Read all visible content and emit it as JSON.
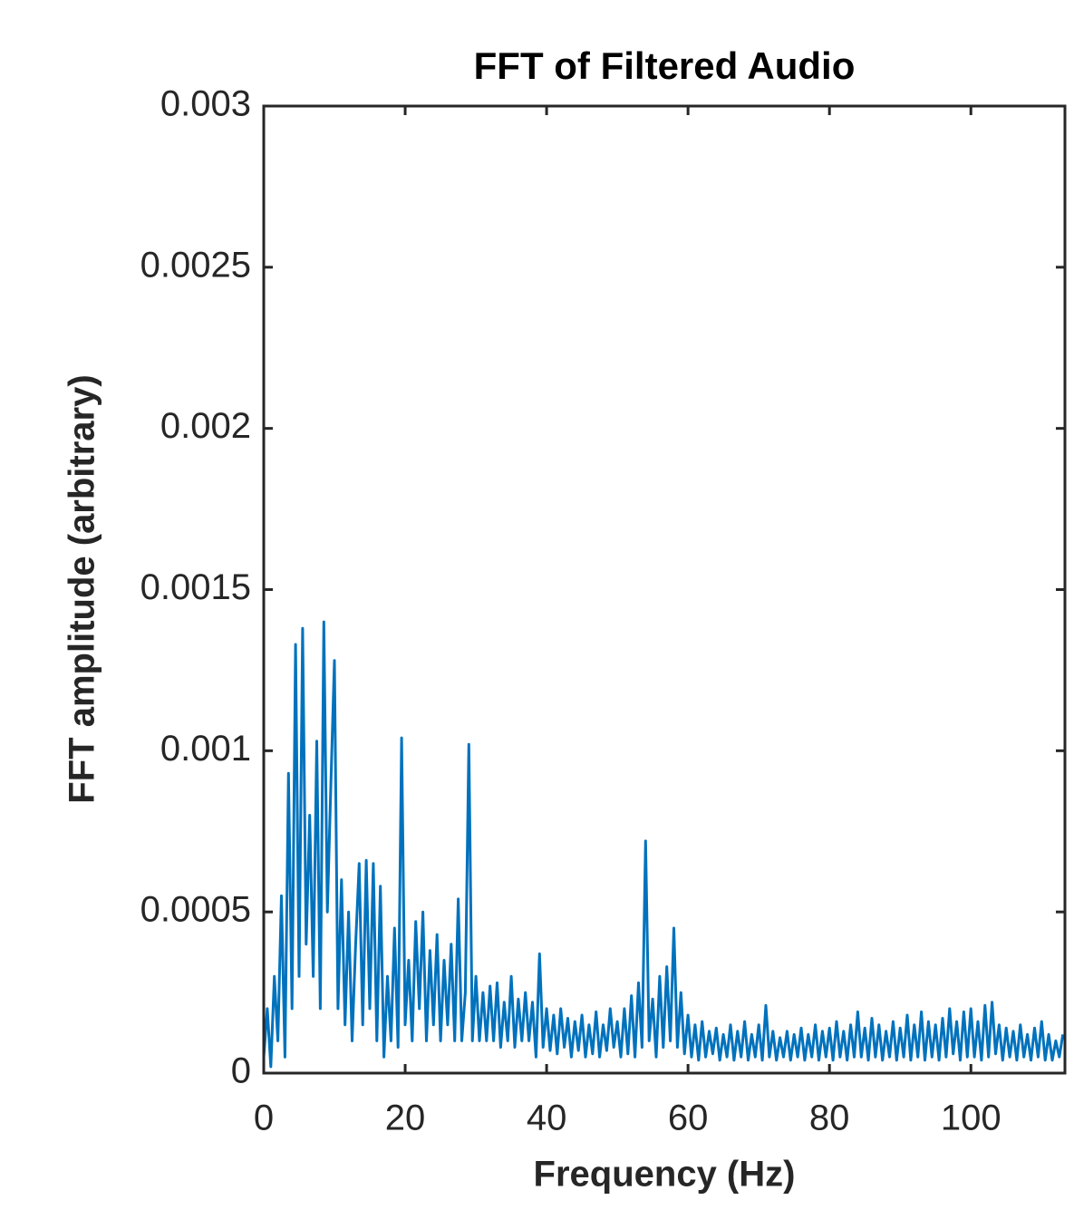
{
  "chart_data": {
    "type": "line",
    "title": "FFT of Filtered Audio",
    "x_label": "Frequency (Hz)",
    "y_label": "FFT amplitude (arbitrary)",
    "color": "#0072bd",
    "xlim": [
      0,
      113.3
    ],
    "ylim": [
      0,
      0.003
    ],
    "xticks": [
      0,
      20,
      40,
      60,
      80,
      100
    ],
    "yticks": [
      0,
      0.0005,
      0.001,
      0.0015,
      0.002,
      0.0025,
      0.003
    ],
    "grid": false,
    "x": [
      0,
      0.5,
      1,
      1.5,
      2,
      2.5,
      3,
      3.5,
      4,
      4.5,
      5,
      5.5,
      6,
      6.5,
      7,
      7.5,
      8,
      8.5,
      9,
      9.5,
      10,
      10.5,
      11,
      11.5,
      12,
      12.5,
      13,
      13.5,
      14,
      14.5,
      15,
      15.5,
      16,
      16.5,
      17,
      17.5,
      18,
      18.5,
      19,
      19.5,
      20,
      20.5,
      21,
      21.5,
      22,
      22.5,
      23,
      23.5,
      24,
      24.5,
      25,
      25.5,
      26,
      26.5,
      27,
      27.5,
      28,
      28.5,
      29,
      29.5,
      30,
      30.5,
      31,
      31.5,
      32,
      32.5,
      33,
      33.5,
      34,
      34.5,
      35,
      35.5,
      36,
      36.5,
      37,
      37.5,
      38,
      38.5,
      39,
      39.5,
      40,
      40.5,
      41,
      41.5,
      42,
      42.5,
      43,
      43.5,
      44,
      44.5,
      45,
      45.5,
      46,
      46.5,
      47,
      47.5,
      48,
      48.5,
      49,
      49.5,
      50,
      50.5,
      51,
      51.5,
      52,
      52.5,
      53,
      53.5,
      54,
      54.5,
      55,
      55.5,
      56,
      56.5,
      57,
      57.5,
      58,
      58.5,
      59,
      59.5,
      60,
      60.5,
      61,
      61.5,
      62,
      62.5,
      63,
      63.5,
      64,
      64.5,
      65,
      65.5,
      66,
      66.5,
      67,
      67.5,
      68,
      68.5,
      69,
      69.5,
      70,
      70.5,
      71,
      71.5,
      72,
      72.5,
      73,
      73.5,
      74,
      74.5,
      75,
      75.5,
      76,
      76.5,
      77,
      77.5,
      78,
      78.5,
      79,
      79.5,
      80,
      80.5,
      81,
      81.5,
      82,
      82.5,
      83,
      83.5,
      84,
      84.5,
      85,
      85.5,
      86,
      86.5,
      87,
      87.5,
      88,
      88.5,
      89,
      89.5,
      90,
      90.5,
      91,
      91.5,
      92,
      92.5,
      93,
      93.5,
      94,
      94.5,
      95,
      95.5,
      96,
      96.5,
      97,
      97.5,
      98,
      98.5,
      99,
      99.5,
      100,
      100.5,
      101,
      101.5,
      102,
      102.5,
      103,
      103.5,
      104,
      104.5,
      105,
      105.5,
      106,
      106.5,
      107,
      107.5,
      108,
      108.5,
      109,
      109.5,
      110,
      110.5,
      111,
      111.5,
      112,
      112.5,
      113
    ],
    "values": [
      5e-05,
      0.0002,
      2e-05,
      0.0003,
      0.0001,
      0.00055,
      5e-05,
      0.00093,
      0.0002,
      0.00133,
      0.0003,
      0.00138,
      0.0004,
      0.0008,
      0.0003,
      0.00103,
      0.0002,
      0.0014,
      0.0005,
      0.0009,
      0.00128,
      0.0002,
      0.0006,
      0.00015,
      0.0005,
      0.0001,
      0.0004,
      0.00065,
      0.00015,
      0.00066,
      0.0002,
      0.00065,
      0.0001,
      0.00058,
      5e-05,
      0.0003,
      0.0001,
      0.00045,
      8e-05,
      0.00104,
      0.00015,
      0.00035,
      0.0001,
      0.00047,
      0.0002,
      0.0005,
      0.0001,
      0.00038,
      0.00015,
      0.00043,
      0.0001,
      0.00035,
      0.00015,
      0.0004,
      0.0001,
      0.00054,
      0.0001,
      0.00025,
      0.00102,
      0.0001,
      0.0003,
      0.0001,
      0.00025,
      0.0001,
      0.00027,
      0.0001,
      0.00028,
      8e-05,
      0.00022,
      0.0001,
      0.0003,
      8e-05,
      0.00023,
      0.0001,
      0.00025,
      0.0001,
      0.00022,
      5e-05,
      0.00037,
      8e-05,
      0.0002,
      7e-05,
      0.00018,
      6e-05,
      0.0002,
      8e-05,
      0.00017,
      5e-05,
      0.00016,
      7e-05,
      0.00018,
      5e-05,
      0.00015,
      6e-05,
      0.00019,
      5e-05,
      0.00015,
      7e-05,
      0.0002,
      8e-05,
      0.00016,
      5e-05,
      0.0002,
      6e-05,
      0.00024,
      5e-05,
      0.00028,
      8e-05,
      0.00072,
      0.0001,
      0.00023,
      5e-05,
      0.0003,
      8e-05,
      0.00033,
      0.0001,
      0.00045,
      8e-05,
      0.00025,
      6e-05,
      0.00018,
      5e-05,
      0.00015,
      4e-05,
      0.00016,
      5e-05,
      0.00013,
      6e-05,
      0.00014,
      4e-05,
      0.00012,
      5e-05,
      0.00015,
      4e-05,
      0.00013,
      5e-05,
      0.00016,
      4e-05,
      0.00012,
      5e-05,
      0.00015,
      4e-05,
      0.00021,
      5e-05,
      0.00013,
      4e-05,
      0.00011,
      5e-05,
      0.00013,
      4e-05,
      0.00012,
      5e-05,
      0.00014,
      4e-05,
      0.00012,
      5e-05,
      0.00015,
      4e-05,
      0.00013,
      5e-05,
      0.00014,
      4e-05,
      0.00016,
      5e-05,
      0.00013,
      4e-05,
      0.00015,
      5e-05,
      0.00019,
      5e-05,
      0.00014,
      4e-05,
      0.00017,
      5e-05,
      0.00015,
      4e-05,
      0.00013,
      5e-05,
      0.00016,
      4e-05,
      0.00014,
      5e-05,
      0.00018,
      4e-05,
      0.00015,
      5e-05,
      0.00019,
      4e-05,
      0.00016,
      5e-05,
      0.00015,
      4e-05,
      0.00017,
      5e-05,
      0.0002,
      6e-05,
      0.00016,
      4e-05,
      0.00019,
      5e-05,
      0.0002,
      5e-05,
      0.00016,
      4e-05,
      0.00021,
      5e-05,
      0.00022,
      6e-05,
      0.00015,
      4e-05,
      0.00014,
      5e-05,
      0.00013,
      4e-05,
      0.00015,
      5e-05,
      0.00012,
      4e-05,
      0.00014,
      5e-05,
      0.00016,
      4e-05,
      0.00012,
      4e-05,
      0.0001,
      5e-05,
      0.00012
    ]
  }
}
